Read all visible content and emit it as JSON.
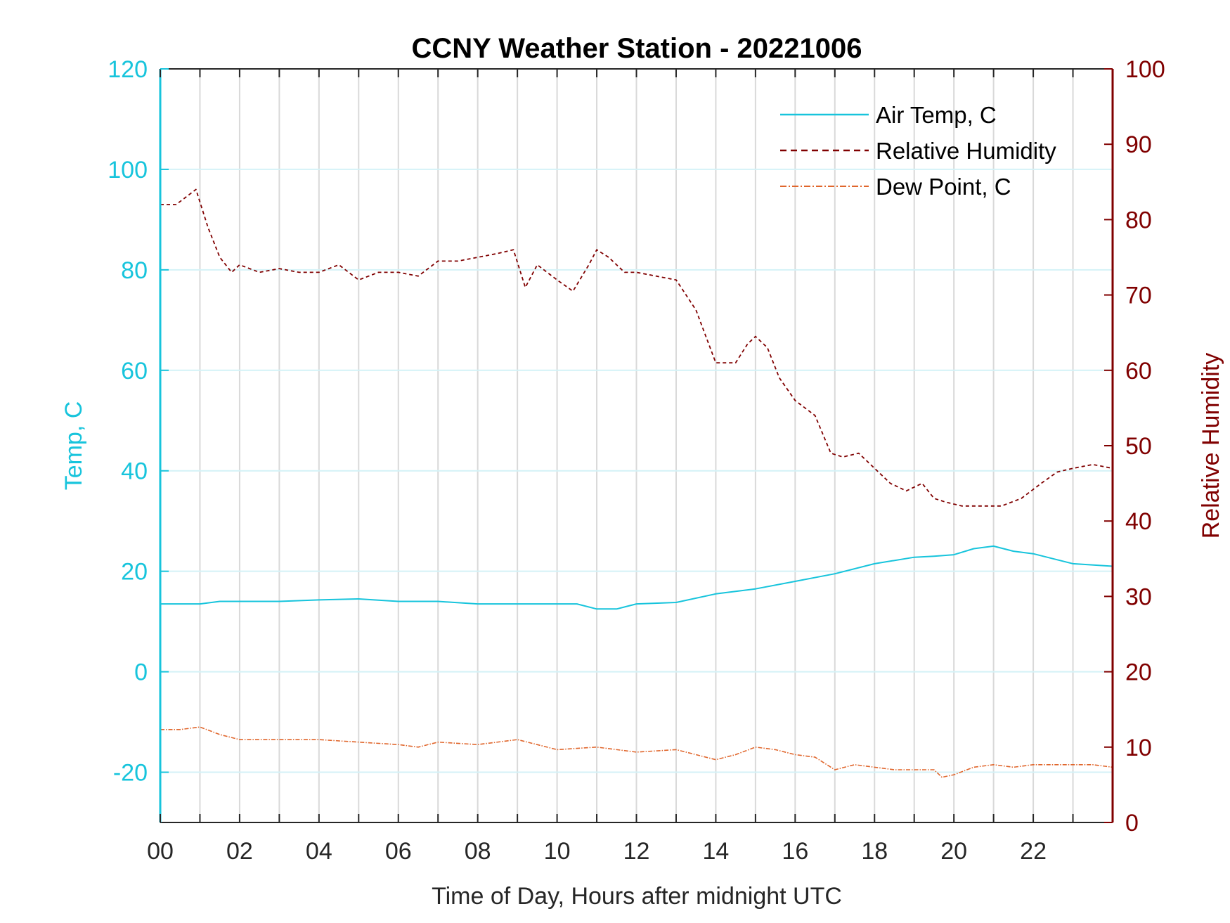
{
  "chart_data": {
    "type": "line",
    "title": "CCNY Weather Station - 20221006",
    "xlabel": "Time of Day, Hours after midnight UTC",
    "ylabel_left": "Temp, C",
    "ylabel_right": "Relative Humidity",
    "xlim": [
      0,
      24
    ],
    "ylim_left": [
      -30,
      120
    ],
    "ylim_right": [
      0,
      100
    ],
    "x_ticks": [
      "00",
      "02",
      "04",
      "06",
      "08",
      "10",
      "12",
      "14",
      "16",
      "18",
      "20",
      "22"
    ],
    "y_ticks_left": [
      "-20",
      "0",
      "20",
      "40",
      "60",
      "80",
      "100",
      "120"
    ],
    "y_ticks_right": [
      "0",
      "10",
      "20",
      "30",
      "40",
      "50",
      "60",
      "70",
      "80",
      "90",
      "100"
    ],
    "grid": true,
    "legend_placement": "top-right",
    "colors": {
      "air_temp": "#17c4dc",
      "humidity": "#800000",
      "dew_point": "#e0662c",
      "grid": "#d9d9d9"
    },
    "series": [
      {
        "name": "Air Temp, C",
        "axis": "left",
        "style": "solid",
        "x": [
          0,
          0.5,
          1,
          1.5,
          2,
          3,
          4,
          5,
          6,
          7,
          8,
          9,
          10,
          10.5,
          11,
          11.5,
          12,
          13,
          14,
          15,
          16,
          17,
          18,
          19,
          19.5,
          20,
          20.5,
          21,
          21.5,
          22,
          22.5,
          23,
          24
        ],
        "values": [
          13.5,
          13.5,
          13.5,
          14,
          14,
          14,
          14.3,
          14.5,
          14,
          14,
          13.5,
          13.5,
          13.5,
          13.5,
          12.5,
          12.5,
          13.5,
          13.8,
          15.5,
          16.5,
          18,
          19.5,
          21.5,
          22.8,
          23,
          23.3,
          24.5,
          25,
          24,
          23.5,
          22.5,
          21.5,
          21
        ]
      },
      {
        "name": "Relative Humidity",
        "axis": "right",
        "style": "dashed",
        "x": [
          0,
          0.4,
          0.9,
          1.2,
          1.5,
          1.8,
          2,
          2.5,
          3,
          3.5,
          4,
          4.5,
          5,
          5.5,
          6,
          6.5,
          7,
          7.5,
          8,
          8.5,
          8.9,
          9.2,
          9.5,
          10,
          10.4,
          10.8,
          11,
          11.3,
          11.7,
          12,
          12.5,
          13,
          13.5,
          14,
          14.5,
          14.8,
          15,
          15.3,
          15.6,
          16,
          16.5,
          16.9,
          17.2,
          17.6,
          18,
          18.4,
          18.8,
          19.2,
          19.5,
          19.8,
          20.2,
          20.7,
          21.2,
          21.7,
          22.2,
          22.6,
          23,
          23.5,
          24
        ],
        "values": [
          82,
          82,
          84,
          79,
          75,
          73,
          74,
          73,
          73.5,
          73,
          73,
          74,
          72,
          73,
          73,
          72.5,
          74.5,
          74.5,
          75,
          75.5,
          76,
          71,
          74,
          72,
          70.5,
          74,
          76,
          75,
          73,
          73,
          72.5,
          72,
          68,
          61,
          61,
          63.5,
          64.5,
          63,
          59,
          56,
          54,
          49,
          48.5,
          49,
          47,
          45,
          44,
          45,
          43,
          42.5,
          42,
          42,
          42,
          43,
          45,
          46.5,
          47,
          47.5,
          47
        ]
      },
      {
        "name": "Dew Point, C",
        "axis": "left",
        "style": "dash-dot",
        "x": [
          0,
          0.5,
          1,
          1.5,
          2,
          3,
          4,
          5,
          6,
          6.5,
          7,
          8,
          9,
          10,
          11,
          12,
          13,
          13.5,
          14,
          14.5,
          15,
          15.5,
          16,
          16.5,
          17,
          17.5,
          18,
          18.5,
          19,
          19.5,
          19.7,
          20,
          20.5,
          21,
          21.5,
          22,
          22.5,
          23,
          23.5,
          24
        ],
        "values": [
          -11.5,
          -11.5,
          -11,
          -12.5,
          -13.5,
          -13.5,
          -13.5,
          -14,
          -14.5,
          -15,
          -14,
          -14.5,
          -13.5,
          -15.5,
          -15,
          -16,
          -15.5,
          -16.5,
          -17.5,
          -16.5,
          -15,
          -15.5,
          -16.5,
          -17,
          -19.5,
          -18.5,
          -19,
          -19.5,
          -19.5,
          -19.5,
          -21,
          -20.5,
          -19,
          -18.5,
          -19,
          -18.5,
          -18.5,
          -18.5,
          -18.5,
          -19
        ]
      }
    ]
  }
}
